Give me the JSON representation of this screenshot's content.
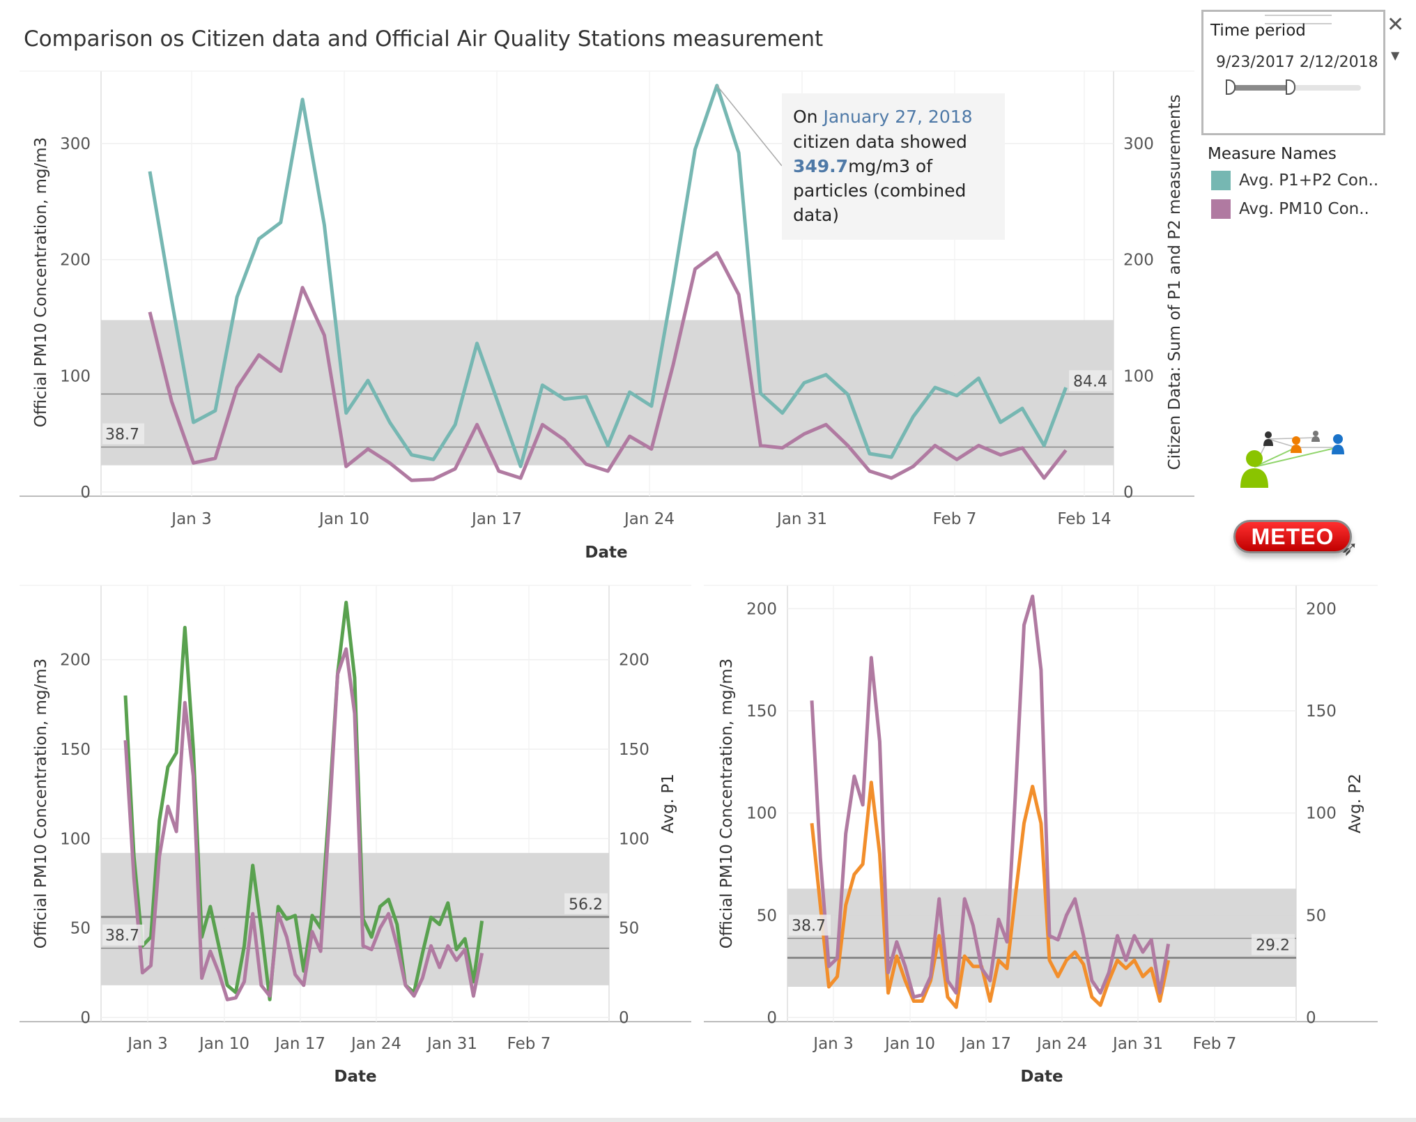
{
  "title": "Comparison os Citizen data and Official Air Quality Stations measurement",
  "filter": {
    "title": "Time period",
    "start": "9/23/2017",
    "end": "2/12/2018",
    "handle_start": 0.0,
    "handle_end": 0.45
  },
  "legend": {
    "title": "Measure Names",
    "items": [
      {
        "label": "Avg. P1+P2 Con..",
        "color": "#76b7b2"
      },
      {
        "label": "Avg. PM10 Con..",
        "color": "#b07aa1"
      }
    ]
  },
  "meteo_label": "METEO",
  "chart_data": [
    {
      "type": "line",
      "xlabel": "Date",
      "ylabel_left": "Official PM10 Concentration, mg/m3",
      "ylabel_right": "Citizen Data: Sum of P1 and P2 measurements",
      "xticks": [
        "Jan 3",
        "Jan 10",
        "Jan 17",
        "Jan 24",
        "Jan 31",
        "Feb 7",
        "Feb 14"
      ],
      "yticks": [
        0,
        100,
        200,
        300
      ],
      "ylim": [
        0,
        360
      ],
      "band": [
        23,
        148
      ],
      "reference_lines": [
        {
          "value": 38.7,
          "label": "38.7"
        },
        {
          "value": 84.4,
          "label": "84.4"
        }
      ],
      "annotation": {
        "prefix": "On",
        "date": "January 27, 2018",
        "line2": "citizen data showed",
        "value": "349.7",
        "unit": "mg/m3 of",
        "line4": "particles (combined",
        "line5": "data)"
      },
      "series": [
        {
          "name": "Avg. P1+P2 Con..",
          "color": "#76b7b2",
          "values": [
            276,
            165,
            60,
            70,
            168,
            218,
            232,
            338,
            230,
            68,
            96,
            60,
            32,
            28,
            58,
            128,
            75,
            22,
            92,
            80,
            82,
            40,
            86,
            74,
            180,
            295,
            350,
            292,
            85,
            68,
            94,
            101,
            84,
            33,
            30,
            65,
            90,
            83,
            98,
            60,
            72,
            40,
            90
          ]
        },
        {
          "name": "Avg. PM10 Con..",
          "color": "#b07aa1",
          "values": [
            155,
            78,
            25,
            29,
            90,
            118,
            104,
            176,
            135,
            22,
            37,
            25,
            10,
            11,
            20,
            58,
            18,
            12,
            58,
            45,
            24,
            18,
            48,
            37,
            110,
            192,
            206,
            170,
            40,
            38,
            50,
            58,
            40,
            18,
            12,
            22,
            40,
            28,
            40,
            32,
            38,
            12,
            36
          ]
        }
      ]
    },
    {
      "type": "line",
      "xlabel": "Date",
      "ylabel_left": "Official PM10 Concentration, mg/m3",
      "ylabel_right": "Avg. P1",
      "xticks": [
        "Jan 3",
        "Jan 10",
        "Jan 17",
        "Jan 24",
        "Jan 31",
        "Feb 7"
      ],
      "yticks": [
        0,
        50,
        100,
        150,
        200
      ],
      "ylim": [
        0,
        240
      ],
      "band": [
        18,
        92
      ],
      "reference_lines": [
        {
          "value": 38.7,
          "label": "38.7"
        },
        {
          "value": 56.2,
          "label": "56.2"
        }
      ],
      "series": [
        {
          "name": "Avg. P1",
          "color": "#59a14f",
          "values": [
            180,
            90,
            40,
            45,
            110,
            140,
            148,
            218,
            150,
            45,
            62,
            40,
            18,
            14,
            40,
            85,
            50,
            10,
            62,
            55,
            57,
            26,
            57,
            50,
            118,
            192,
            232,
            190,
            55,
            45,
            62,
            66,
            52,
            18,
            14,
            36,
            56,
            52,
            64,
            38,
            44,
            20,
            54
          ]
        },
        {
          "name": "Avg. PM10 Con..",
          "color": "#b07aa1",
          "values": [
            155,
            78,
            25,
            29,
            90,
            118,
            104,
            176,
            135,
            22,
            37,
            25,
            10,
            11,
            20,
            58,
            18,
            12,
            58,
            45,
            24,
            18,
            48,
            37,
            110,
            192,
            206,
            170,
            40,
            38,
            50,
            58,
            40,
            18,
            12,
            22,
            40,
            28,
            40,
            32,
            38,
            12,
            36
          ]
        }
      ]
    },
    {
      "type": "line",
      "xlabel": "Date",
      "ylabel_left": "Official PM10 Concentration, mg/m3",
      "ylabel_right": "Avg. P2",
      "xticks": [
        "Jan 3",
        "Jan 10",
        "Jan 17",
        "Jan 24",
        "Jan 31",
        "Feb 7"
      ],
      "yticks": [
        0,
        50,
        100,
        150,
        200
      ],
      "ylim": [
        0,
        210
      ],
      "band": [
        15,
        63
      ],
      "reference_lines": [
        {
          "value": 38.7,
          "label": "38.7"
        },
        {
          "value": 29.2,
          "label": "29.2"
        }
      ],
      "series": [
        {
          "name": "Avg. P2",
          "color": "#f28e2b",
          "values": [
            95,
            55,
            15,
            20,
            55,
            70,
            75,
            115,
            80,
            12,
            30,
            18,
            8,
            8,
            18,
            40,
            10,
            5,
            30,
            25,
            25,
            8,
            28,
            24,
            60,
            95,
            113,
            95,
            28,
            20,
            28,
            32,
            26,
            10,
            6,
            18,
            28,
            24,
            28,
            20,
            24,
            8,
            28
          ]
        },
        {
          "name": "Avg. PM10 Con..",
          "color": "#b07aa1",
          "values": [
            155,
            78,
            25,
            29,
            90,
            118,
            104,
            176,
            135,
            22,
            37,
            25,
            10,
            11,
            20,
            58,
            18,
            12,
            58,
            45,
            24,
            18,
            48,
            37,
            110,
            192,
            206,
            170,
            40,
            38,
            50,
            58,
            40,
            18,
            12,
            22,
            40,
            28,
            40,
            32,
            38,
            12,
            36
          ]
        }
      ]
    }
  ]
}
